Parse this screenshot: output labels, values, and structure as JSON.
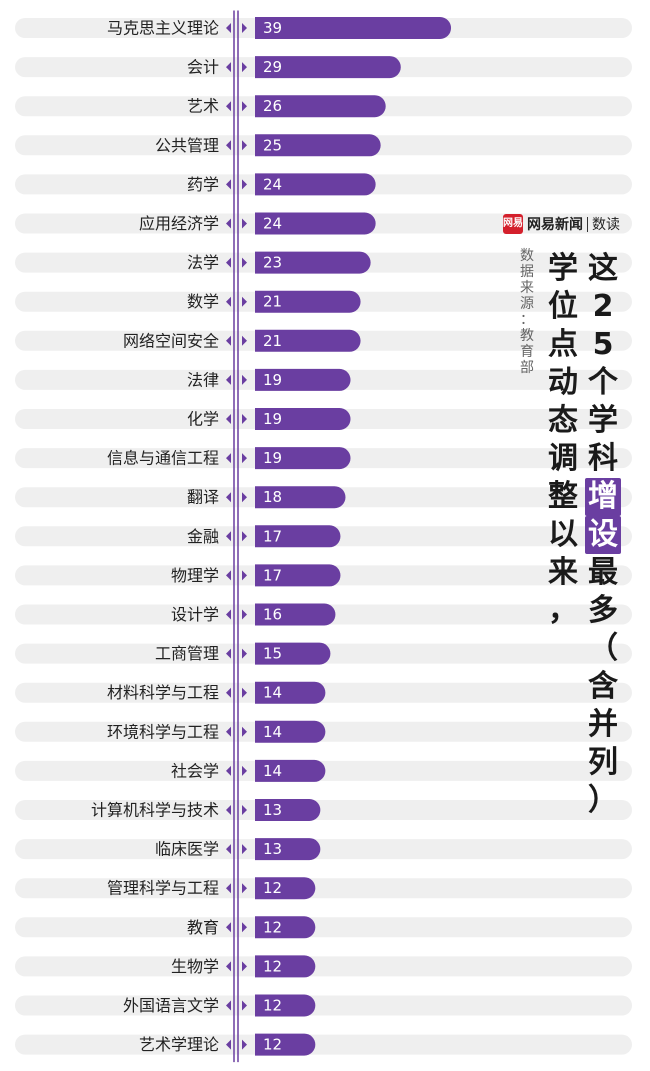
{
  "chart_data": {
    "type": "bar",
    "orientation": "horizontal",
    "title_line_1": "这25个学科增设最多（含并列）",
    "title_line_2": "学位点动态调整以来，",
    "title_highlight": "增设",
    "source": "数据来源：教育部",
    "categories": [
      "马克思主义理论",
      "会计",
      "艺术",
      "公共管理",
      "药学",
      "应用经济学",
      "法学",
      "数学",
      "网络空间安全",
      "法律",
      "化学",
      "信息与通信工程",
      "翻译",
      "金融",
      "物理学",
      "设计学",
      "工商管理",
      "材料科学与工程",
      "环境科学与工程",
      "社会学",
      "计算机科学与技术",
      "临床医学",
      "管理科学与工程",
      "教育",
      "生物学",
      "外国语言文学",
      "艺术学理论"
    ],
    "values": [
      39,
      29,
      26,
      25,
      24,
      24,
      23,
      21,
      21,
      19,
      19,
      19,
      18,
      17,
      17,
      16,
      15,
      14,
      14,
      14,
      13,
      13,
      12,
      12,
      12,
      12,
      12
    ],
    "xlim": [
      0,
      75
    ],
    "grid": false,
    "legend": "none",
    "colors": {
      "bar": "#6a3ea1",
      "track": "#efefef",
      "marker": "#6a3ea1",
      "axis": "#6a3ea1",
      "text": "#222222"
    }
  },
  "branding": {
    "logo_mark": "网易",
    "name": "网易新闻",
    "sub": "数读",
    "logo_color": "#d4202c"
  }
}
